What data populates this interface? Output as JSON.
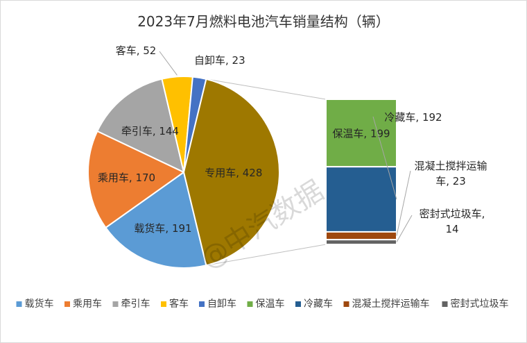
{
  "chart_data": {
    "type": "pie",
    "title": "2023年7月燃料电池汽车销量结构（辆）",
    "series": [
      {
        "name": "载货车",
        "value": 191,
        "color": "#5B9BD5"
      },
      {
        "name": "乘用车",
        "value": 170,
        "color": "#ED7D31"
      },
      {
        "name": "牵引车",
        "value": 144,
        "color": "#A5A5A5"
      },
      {
        "name": "客车",
        "value": 52,
        "color": "#FFC000"
      },
      {
        "name": "自卸车",
        "value": 23,
        "color": "#4472C4"
      },
      {
        "name": "专用车",
        "value": 428,
        "color": "#9E7800"
      }
    ],
    "breakdown": {
      "parent": "专用车",
      "series": [
        {
          "name": "保温车",
          "value": 199,
          "color": "#70AD47"
        },
        {
          "name": "冷藏车",
          "value": 192,
          "color": "#255E91"
        },
        {
          "name": "混凝土搅拌运输车",
          "value": 23,
          "color": "#9E480E"
        },
        {
          "name": "密封式垃圾车",
          "value": 14,
          "color": "#636363"
        }
      ]
    },
    "legend_position": "bottom",
    "legend": [
      "载货车",
      "乘用车",
      "牵引车",
      "客车",
      "自卸车",
      "保温车",
      "冷藏车",
      "混凝土搅拌运输车",
      "密封式垃圾车"
    ]
  },
  "watermark": "@中汽数据"
}
